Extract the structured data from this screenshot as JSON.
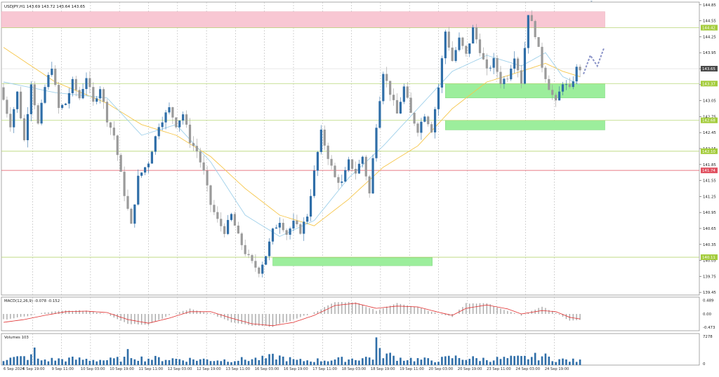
{
  "header": {
    "symbol_info": "USDJPY,H1  143.69 143.72 143.64 143.65"
  },
  "colors": {
    "background": "#ffffff",
    "grid": "#b8b8b8",
    "bull": "#2f6ea8",
    "bear": "#9a9a9a",
    "ema_fast": "#9fd0ea",
    "ema_slow": "#f6c64a",
    "resistance_zone": "#f8c7d3",
    "support_zone": "#9cee9c",
    "level_line": "#b8d676",
    "level_label": "#a4cc3c",
    "red_level": "#e0505f",
    "macd_hist": "#a8a8a8",
    "macd_signal": "#e03030",
    "volume_bar": "#2f6ea8",
    "forecast": "#8a93c8"
  },
  "chart_data": [
    {
      "type": "candlestick",
      "title": "USDJPY,H1",
      "ohlc_header": {
        "open": 143.69,
        "high": 143.72,
        "low": 143.64,
        "close": 143.65
      },
      "y_ticks": [
        144.85,
        144.55,
        144.25,
        143.95,
        143.65,
        143.35,
        143.05,
        142.75,
        142.45,
        142.15,
        141.85,
        141.55,
        141.25,
        140.95,
        140.65,
        140.35,
        140.05,
        139.75,
        139.45
      ],
      "ylim": [
        139.4,
        144.9
      ],
      "x_tick_labels": [
        "6 Sep 2024",
        "6 Sep 19:00",
        "9 Sep 11:00",
        "10 Sep 03:00",
        "10 Sep 19:00",
        "11 Sep 11:00",
        "12 Sep 03:00",
        "12 Sep 19:00",
        "13 Sep 11:00",
        "16 Sep 03:00",
        "16 Sep 19:00",
        "17 Sep 11:00",
        "18 Sep 03:00",
        "18 Sep 19:00",
        "19 Sep 11:00",
        "20 Sep 03:00",
        "20 Sep 19:00",
        "23 Sep 11:00",
        "24 Sep 03:00",
        "24 Sep 19:00"
      ],
      "price_path": [
        [
          0,
          143.3
        ],
        [
          3,
          142.6
        ],
        [
          5,
          143.2
        ],
        [
          7,
          142.3
        ],
        [
          9,
          143.4
        ],
        [
          11,
          142.6
        ],
        [
          13,
          143.3
        ],
        [
          15,
          143.7
        ],
        [
          17,
          142.9
        ],
        [
          19,
          143.0
        ],
        [
          21,
          143.4
        ],
        [
          23,
          143.1
        ],
        [
          25,
          143.5
        ],
        [
          27,
          143.0
        ],
        [
          29,
          143.3
        ],
        [
          31,
          142.7
        ],
        [
          33,
          142.4
        ],
        [
          36,
          141.3
        ],
        [
          38,
          140.7
        ],
        [
          40,
          141.6
        ],
        [
          43,
          141.9
        ],
        [
          46,
          142.6
        ],
        [
          49,
          142.9
        ],
        [
          51,
          142.6
        ],
        [
          53,
          142.8
        ],
        [
          55,
          142.3
        ],
        [
          57,
          142.1
        ],
        [
          59,
          141.7
        ],
        [
          61,
          141.1
        ],
        [
          63,
          140.8
        ],
        [
          65,
          140.6
        ],
        [
          67,
          140.9
        ],
        [
          69,
          140.5
        ],
        [
          71,
          140.2
        ],
        [
          73,
          140.0
        ],
        [
          75,
          139.85
        ],
        [
          77,
          140.15
        ],
        [
          79,
          140.6
        ],
        [
          81,
          140.8
        ],
        [
          83,
          140.55
        ],
        [
          85,
          140.75
        ],
        [
          87,
          140.6
        ],
        [
          89,
          140.9
        ],
        [
          91,
          141.7
        ],
        [
          93,
          142.45
        ],
        [
          95,
          142.0
        ],
        [
          97,
          141.6
        ],
        [
          99,
          141.5
        ],
        [
          101,
          141.9
        ],
        [
          103,
          141.7
        ],
        [
          105,
          142.0
        ],
        [
          107,
          141.3
        ],
        [
          109,
          142.6
        ],
        [
          111,
          143.6
        ],
        [
          113,
          143.2
        ],
        [
          115,
          142.8
        ],
        [
          117,
          143.3
        ],
        [
          119,
          142.8
        ],
        [
          121,
          142.5
        ],
        [
          123,
          142.8
        ],
        [
          125,
          142.5
        ],
        [
          127,
          143.3
        ],
        [
          129,
          144.35
        ],
        [
          131,
          143.8
        ],
        [
          133,
          144.2
        ],
        [
          135,
          143.9
        ],
        [
          137,
          144.4
        ],
        [
          139,
          144.0
        ],
        [
          141,
          143.6
        ],
        [
          143,
          143.8
        ],
        [
          145,
          143.4
        ],
        [
          147,
          143.5
        ],
        [
          149,
          143.9
        ],
        [
          151,
          143.4
        ],
        [
          153,
          144.7
        ],
        [
          155,
          144.3
        ],
        [
          157,
          143.7
        ],
        [
          159,
          143.3
        ],
        [
          161,
          143.0
        ],
        [
          163,
          143.4
        ],
        [
          165,
          143.25
        ],
        [
          167,
          143.65
        ]
      ],
      "ema_fast": [
        [
          0,
          143.4
        ],
        [
          15,
          143.2
        ],
        [
          30,
          143.1
        ],
        [
          40,
          142.4
        ],
        [
          50,
          142.6
        ],
        [
          60,
          141.9
        ],
        [
          70,
          140.9
        ],
        [
          80,
          140.5
        ],
        [
          90,
          140.8
        ],
        [
          100,
          141.6
        ],
        [
          110,
          142.2
        ],
        [
          120,
          142.9
        ],
        [
          130,
          143.6
        ],
        [
          140,
          143.9
        ],
        [
          150,
          143.7
        ],
        [
          157,
          143.95
        ],
        [
          162,
          143.5
        ],
        [
          167,
          143.35
        ]
      ],
      "ema_slow": [
        [
          0,
          144.05
        ],
        [
          15,
          143.4
        ],
        [
          30,
          143.0
        ],
        [
          40,
          142.6
        ],
        [
          50,
          142.4
        ],
        [
          60,
          142.0
        ],
        [
          70,
          141.4
        ],
        [
          80,
          140.9
        ],
        [
          90,
          140.7
        ],
        [
          100,
          141.2
        ],
        [
          110,
          141.8
        ],
        [
          120,
          142.2
        ],
        [
          130,
          142.9
        ],
        [
          140,
          143.4
        ],
        [
          150,
          143.6
        ],
        [
          157,
          143.75
        ],
        [
          162,
          143.6
        ],
        [
          167,
          143.5
        ]
      ],
      "forecast_path": [
        [
          168,
          143.55
        ],
        [
          170,
          143.9
        ],
        [
          172,
          143.7
        ],
        [
          174,
          144.05
        ]
      ],
      "zones": [
        {
          "kind": "resistance",
          "from": 144.42,
          "to": 144.72,
          "start_x": 0,
          "end_x": 174
        },
        {
          "kind": "support",
          "from": 143.1,
          "to": 143.37,
          "start_x": 128,
          "end_x": 174
        },
        {
          "kind": "support",
          "from": 142.5,
          "to": 142.68,
          "start_x": 128,
          "end_x": 174
        },
        {
          "kind": "support",
          "from": 139.95,
          "to": 140.1,
          "start_x": 78,
          "end_x": 124
        }
      ],
      "levels": [
        {
          "price": 144.42,
          "label": "144.42",
          "color": "green"
        },
        {
          "price": 143.37,
          "label": "143.37",
          "color": "green"
        },
        {
          "price": 142.68,
          "label": "142.68",
          "color": "green"
        },
        {
          "price": 142.1,
          "label": "142.10",
          "color": "green"
        },
        {
          "price": 141.74,
          "label": "141.74",
          "color": "red"
        },
        {
          "price": 140.11,
          "label": "140.11",
          "color": "green"
        }
      ],
      "current_price": {
        "price": 143.65,
        "label": "143.65"
      },
      "grid": true
    },
    {
      "type": "histogram",
      "title": "MACD(12,26,9) -0.078 -0.152",
      "y_ticks": [
        "0.489",
        "0.00",
        "-0.473"
      ],
      "ylim": [
        -0.6,
        0.6
      ],
      "histogram_path": [
        [
          0,
          -0.2
        ],
        [
          6,
          -0.1
        ],
        [
          12,
          0.05
        ],
        [
          18,
          0.12
        ],
        [
          24,
          0.12
        ],
        [
          30,
          0.0
        ],
        [
          36,
          -0.35
        ],
        [
          42,
          -0.38
        ],
        [
          48,
          -0.05
        ],
        [
          54,
          0.18
        ],
        [
          60,
          0.02
        ],
        [
          66,
          -0.3
        ],
        [
          72,
          -0.42
        ],
        [
          78,
          -0.45
        ],
        [
          84,
          -0.2
        ],
        [
          90,
          0.05
        ],
        [
          96,
          0.42
        ],
        [
          102,
          0.42
        ],
        [
          108,
          0.12
        ],
        [
          114,
          0.38
        ],
        [
          120,
          0.25
        ],
        [
          126,
          0.0
        ],
        [
          130,
          -0.1
        ],
        [
          134,
          0.38
        ],
        [
          140,
          0.38
        ],
        [
          146,
          0.1
        ],
        [
          150,
          -0.05
        ],
        [
          156,
          0.25
        ],
        [
          160,
          0.05
        ],
        [
          164,
          -0.25
        ],
        [
          167,
          -0.2
        ]
      ],
      "signal_path": [
        [
          0,
          -0.3
        ],
        [
          6,
          -0.2
        ],
        [
          12,
          -0.05
        ],
        [
          18,
          0.08
        ],
        [
          24,
          0.1
        ],
        [
          30,
          0.05
        ],
        [
          36,
          -0.2
        ],
        [
          42,
          -0.33
        ],
        [
          48,
          -0.15
        ],
        [
          54,
          0.08
        ],
        [
          60,
          0.08
        ],
        [
          66,
          -0.15
        ],
        [
          72,
          -0.35
        ],
        [
          78,
          -0.42
        ],
        [
          84,
          -0.3
        ],
        [
          90,
          -0.05
        ],
        [
          96,
          0.3
        ],
        [
          102,
          0.38
        ],
        [
          108,
          0.2
        ],
        [
          114,
          0.28
        ],
        [
          120,
          0.25
        ],
        [
          126,
          0.06
        ],
        [
          130,
          -0.05
        ],
        [
          134,
          0.2
        ],
        [
          140,
          0.32
        ],
        [
          146,
          0.18
        ],
        [
          150,
          0.0
        ],
        [
          156,
          0.12
        ],
        [
          160,
          0.08
        ],
        [
          164,
          -0.12
        ],
        [
          167,
          -0.18
        ]
      ],
      "grid": true
    },
    {
      "type": "bar",
      "title": "Volumes 103",
      "y_ticks": [
        "7278",
        "0"
      ],
      "ylim": [
        0,
        7278
      ],
      "bar_path": [
        [
          0,
          1800
        ],
        [
          8,
          2400
        ],
        [
          9,
          5200
        ],
        [
          10,
          1500
        ],
        [
          20,
          1800
        ],
        [
          30,
          1500
        ],
        [
          35,
          1900
        ],
        [
          36,
          3300
        ],
        [
          40,
          2000
        ],
        [
          55,
          1700
        ],
        [
          65,
          1500
        ],
        [
          75,
          1900
        ],
        [
          79,
          2600
        ],
        [
          85,
          1300
        ],
        [
          95,
          1600
        ],
        [
          100,
          1800
        ],
        [
          107,
          2300
        ],
        [
          108,
          7278
        ],
        [
          109,
          3600
        ],
        [
          115,
          2000
        ],
        [
          125,
          1400
        ],
        [
          130,
          2300
        ],
        [
          140,
          1700
        ],
        [
          150,
          2100
        ],
        [
          156,
          2700
        ],
        [
          160,
          1700
        ],
        [
          167,
          1200
        ]
      ],
      "grid": true
    }
  ]
}
